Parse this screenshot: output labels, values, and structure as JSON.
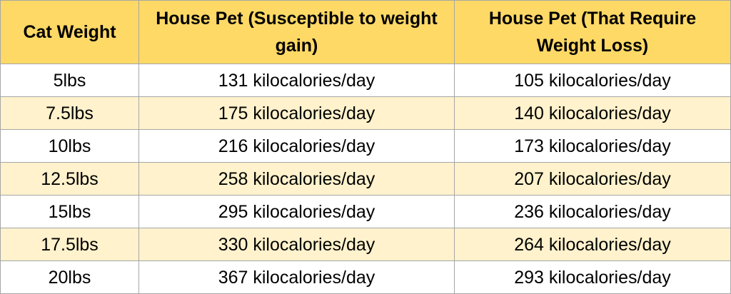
{
  "table": {
    "headers": [
      "Cat Weight",
      "House Pet (Susceptible to weight gain)",
      "House Pet (That Require Weight Loss)"
    ],
    "rows": [
      [
        "5lbs",
        "131 kilocalories/day",
        "105 kilocalories/day"
      ],
      [
        "7.5lbs",
        "175 kilocalories/day",
        "140 kilocalories/day"
      ],
      [
        "10lbs",
        "216 kilocalories/day",
        "173 kilocalories/day"
      ],
      [
        "12.5lbs",
        "258 kilocalories/day",
        "207 kilocalories/day"
      ],
      [
        "15lbs",
        "295 kilocalories/day",
        "236 kilocalories/day"
      ],
      [
        "17.5lbs",
        "330 kilocalories/day",
        "264 kilocalories/day"
      ],
      [
        "20lbs",
        "367 kilocalories/day",
        "293 kilocalories/day"
      ]
    ]
  },
  "colors": {
    "header_background": "#ffd966",
    "alternate_row_background": "#fff2cc",
    "row_background": "#ffffff",
    "border": "#a6a6a6"
  }
}
